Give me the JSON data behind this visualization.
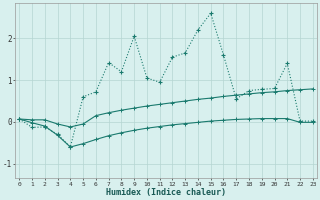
{
  "x": [
    0,
    1,
    2,
    3,
    4,
    5,
    6,
    7,
    8,
    9,
    10,
    11,
    12,
    13,
    14,
    15,
    16,
    17,
    18,
    19,
    20,
    21,
    22,
    23
  ],
  "y_main": [
    0.07,
    -0.13,
    -0.12,
    -0.3,
    -0.6,
    0.6,
    0.72,
    1.42,
    1.2,
    2.05,
    1.05,
    0.95,
    1.55,
    1.65,
    2.2,
    2.6,
    1.6,
    0.55,
    0.75,
    0.78,
    0.8,
    1.4,
    0.02,
    0.02
  ],
  "y_upper": [
    0.07,
    0.05,
    0.05,
    -0.05,
    -0.12,
    -0.05,
    0.15,
    0.22,
    0.28,
    0.33,
    0.38,
    0.42,
    0.46,
    0.5,
    0.54,
    0.57,
    0.61,
    0.64,
    0.67,
    0.7,
    0.72,
    0.75,
    0.77,
    0.79
  ],
  "y_lower": [
    0.07,
    -0.02,
    -0.1,
    -0.32,
    -0.6,
    -0.52,
    -0.42,
    -0.33,
    -0.26,
    -0.2,
    -0.15,
    -0.11,
    -0.07,
    -0.04,
    -0.01,
    0.02,
    0.04,
    0.06,
    0.07,
    0.08,
    0.08,
    0.08,
    -0.01,
    -0.01
  ],
  "line_color": "#1a7a6e",
  "bg_color": "#d8f0ee",
  "grid_color": "#b5d5d2",
  "xlabel": "Humidex (Indice chaleur)",
  "yticks": [
    -1,
    0,
    1,
    2
  ],
  "xticks": [
    0,
    1,
    2,
    3,
    4,
    5,
    6,
    7,
    8,
    9,
    10,
    11,
    12,
    13,
    14,
    15,
    16,
    17,
    18,
    19,
    20,
    21,
    22,
    23
  ],
  "ylim": [
    -1.35,
    2.85
  ],
  "xlim": [
    -0.3,
    23.3
  ]
}
